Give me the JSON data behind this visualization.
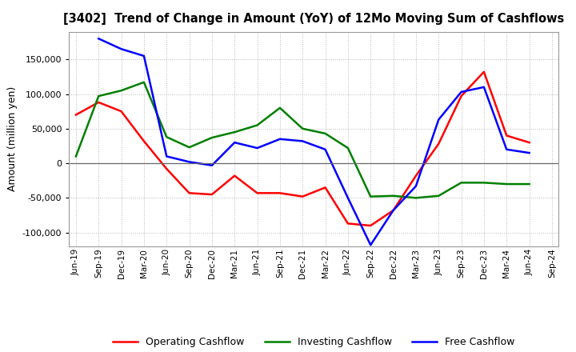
{
  "title": "[3402]  Trend of Change in Amount (YoY) of 12Mo Moving Sum of Cashflows",
  "ylabel": "Amount (million yen)",
  "x_labels": [
    "Jun-19",
    "Sep-19",
    "Dec-19",
    "Mar-20",
    "Jun-20",
    "Sep-20",
    "Dec-20",
    "Mar-21",
    "Jun-21",
    "Sep-21",
    "Dec-21",
    "Mar-22",
    "Jun-22",
    "Sep-22",
    "Dec-22",
    "Mar-23",
    "Jun-23",
    "Sep-23",
    "Dec-23",
    "Mar-24",
    "Jun-24",
    "Sep-24"
  ],
  "operating": [
    70000,
    88000,
    75000,
    32000,
    -8000,
    -43000,
    -45000,
    -18000,
    -43000,
    -43000,
    -48000,
    -35000,
    -87000,
    -90000,
    -68000,
    -18000,
    28000,
    97000,
    132000,
    40000,
    30000,
    null
  ],
  "investing": [
    10000,
    97000,
    105000,
    117000,
    38000,
    23000,
    37000,
    45000,
    55000,
    80000,
    50000,
    43000,
    22000,
    -48000,
    -47000,
    -50000,
    -47000,
    -28000,
    -28000,
    -30000,
    -30000,
    null
  ],
  "free": [
    null,
    180000,
    165000,
    155000,
    10000,
    2000,
    -3000,
    30000,
    22000,
    35000,
    32000,
    20000,
    -50000,
    -118000,
    -68000,
    -33000,
    63000,
    103000,
    110000,
    20000,
    15000,
    null
  ],
  "operating_color": "#ff0000",
  "investing_color": "#008000",
  "free_color": "#0000ff",
  "ylim": [
    -120000,
    190000
  ],
  "yticks": [
    -100000,
    -50000,
    0,
    50000,
    100000,
    150000
  ],
  "background_color": "#ffffff",
  "grid_color": "#b0b0b0"
}
